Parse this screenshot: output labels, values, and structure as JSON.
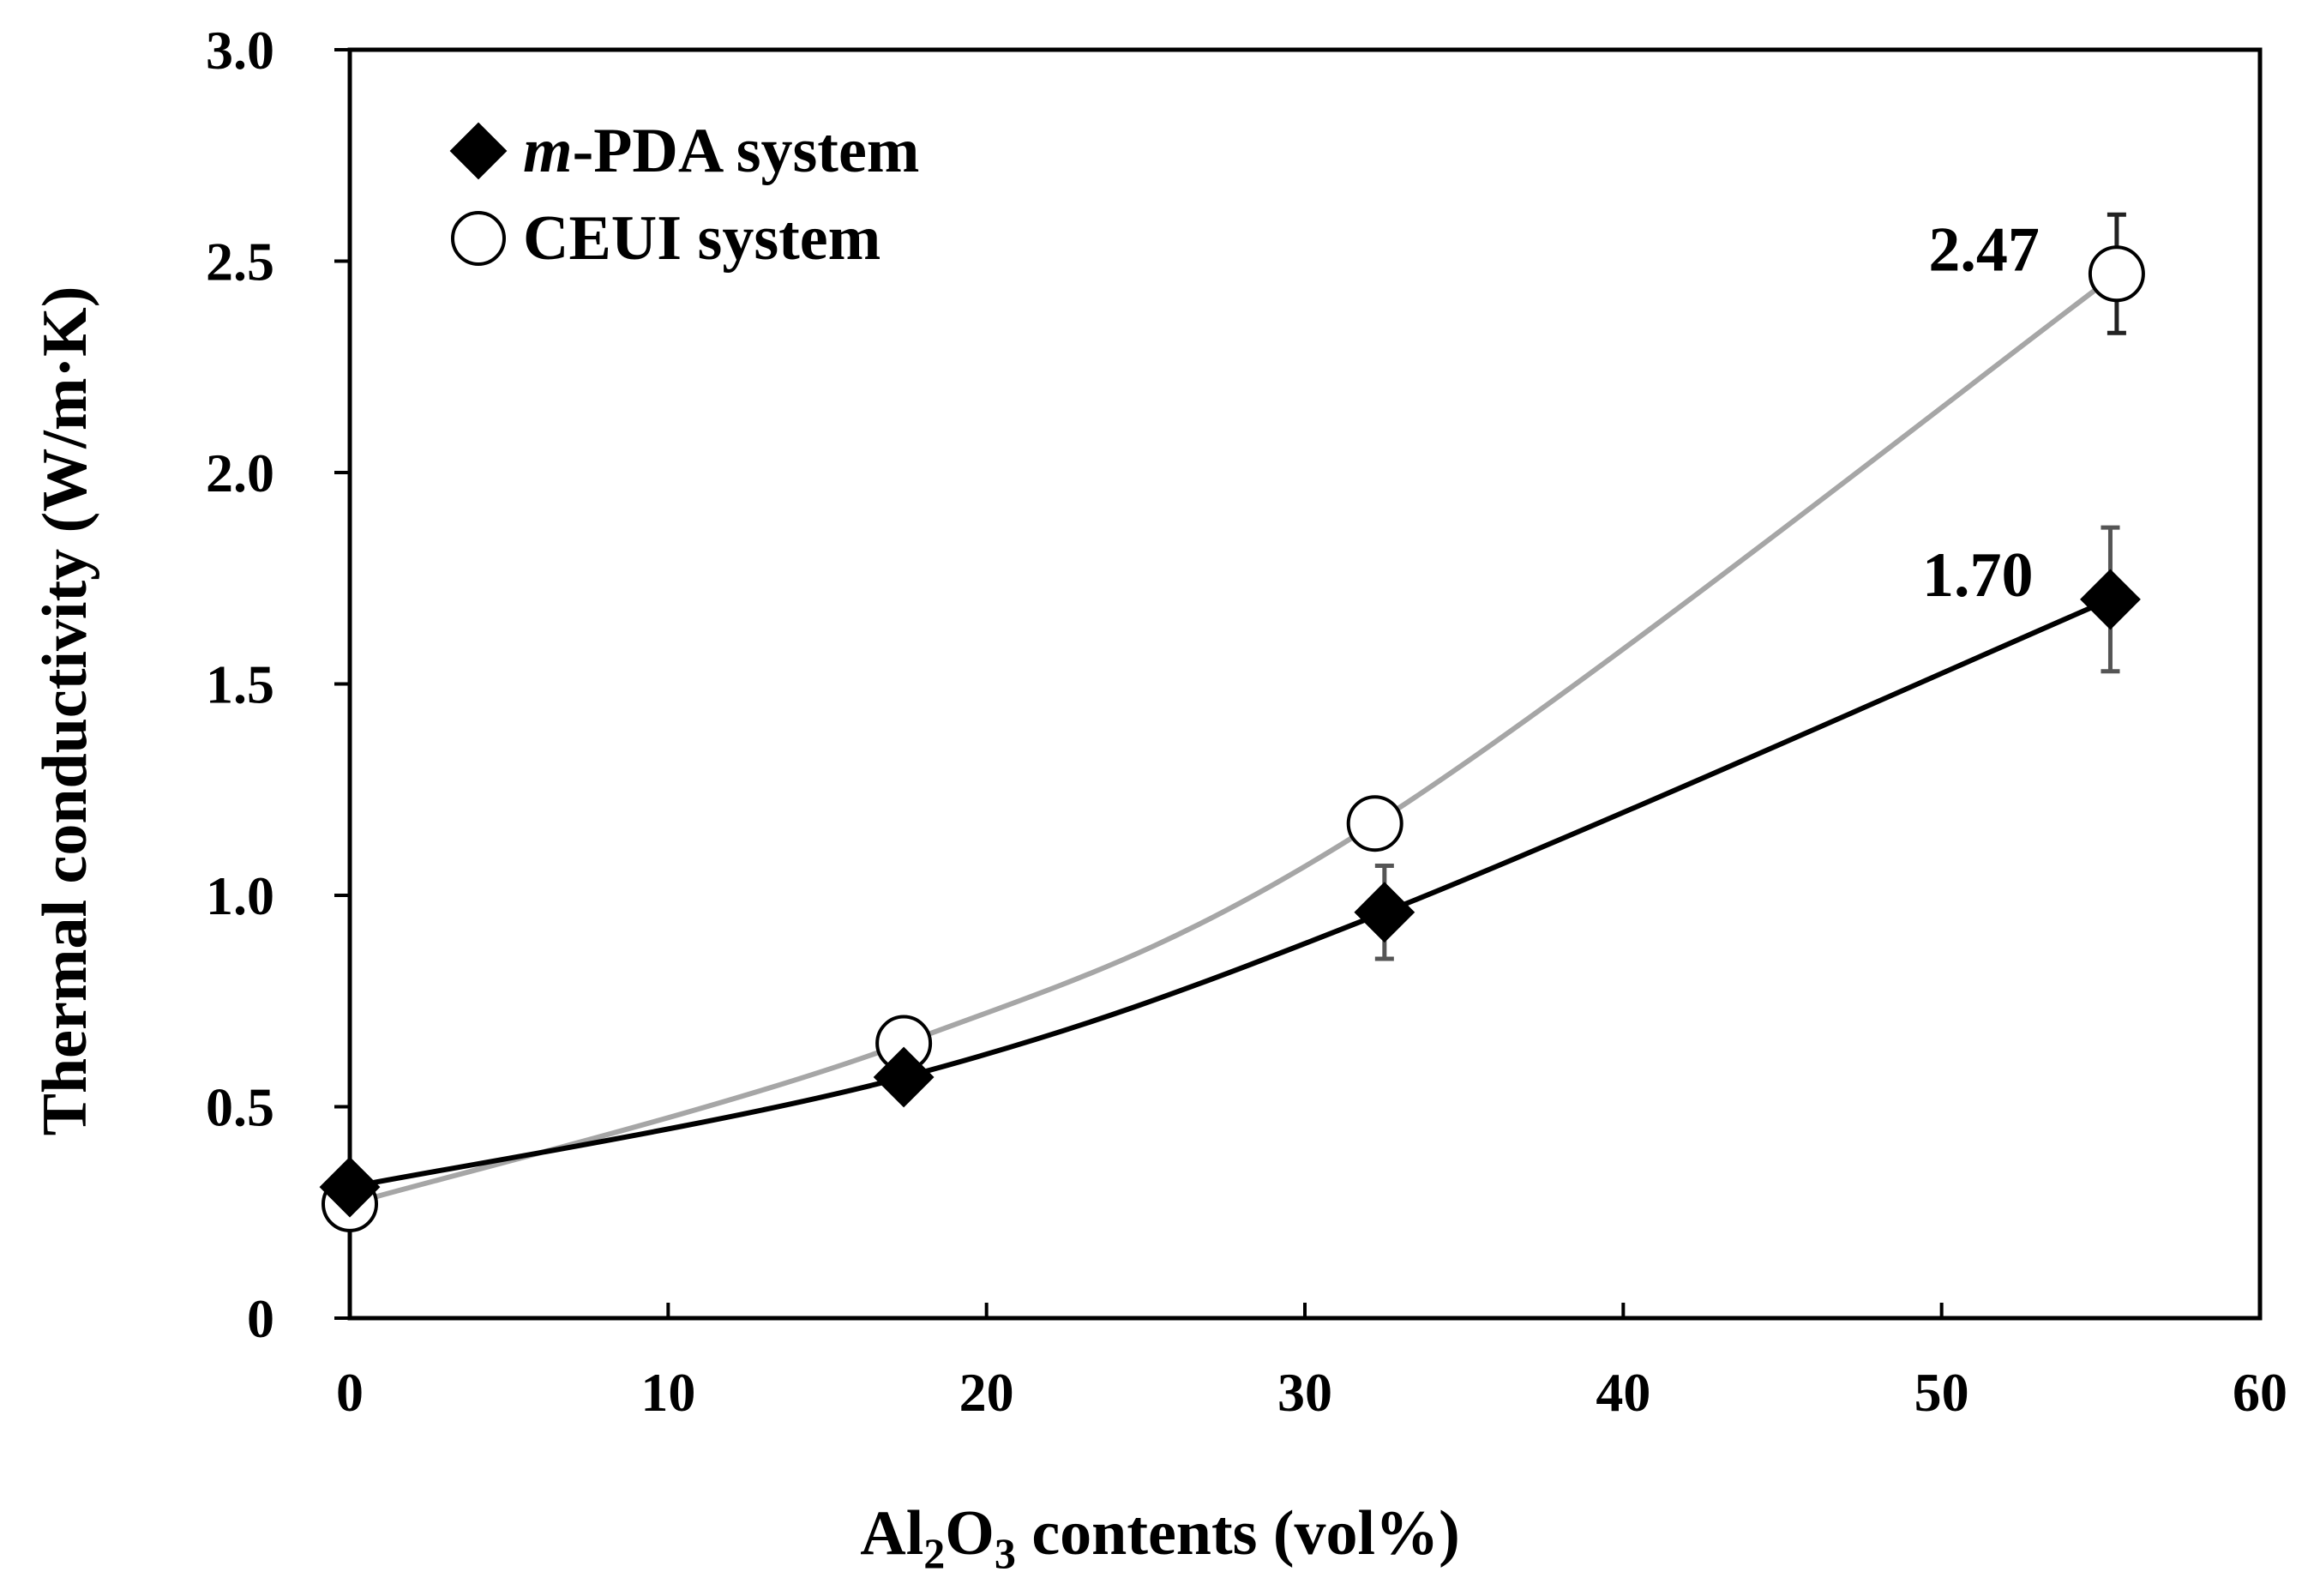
{
  "chart_data": {
    "type": "scatter",
    "title": "",
    "xlabel": {
      "prefix": "Al",
      "sub1": "2",
      "mid": "O",
      "sub2": "3",
      "suffix": " contents (vol%)"
    },
    "ylabel": "Thermal conductivity (W/m·K)",
    "xlim": [
      0,
      60
    ],
    "ylim": [
      0,
      3.0
    ],
    "xticks": [
      0,
      10,
      20,
      30,
      40,
      50,
      60
    ],
    "xtick_labels": [
      "0",
      "10",
      "20",
      "30",
      "40",
      "50",
      "60"
    ],
    "yticks": [
      0,
      0.5,
      1.0,
      1.5,
      2.0,
      2.5,
      3.0
    ],
    "ytick_labels": [
      "0",
      "0.5",
      "1.0",
      "1.5",
      "2.0",
      "2.5",
      "3.0"
    ],
    "grid": false,
    "legend_position": "top-left",
    "series": [
      {
        "name": "m-PDA system",
        "legend_italic": "m",
        "legend_rest": "-PDA system",
        "marker": "diamond",
        "marker_color": "#000000",
        "line_color": "#000000",
        "x": [
          0,
          17.4,
          32.5,
          55.3
        ],
        "y": [
          0.31,
          0.57,
          0.96,
          1.7
        ],
        "error": [
          null,
          null,
          0.11,
          0.17
        ]
      },
      {
        "name": "CEUI system",
        "marker": "circle-open",
        "marker_color": "#000000",
        "line_color": "#a6a6a6",
        "x": [
          0,
          17.4,
          32.2,
          55.5
        ],
        "y": [
          0.27,
          0.65,
          1.17,
          2.47
        ],
        "error": [
          null,
          null,
          null,
          0.14
        ]
      }
    ],
    "annotations": [
      {
        "text": "2.47",
        "series": 1,
        "point": 3
      },
      {
        "text": "1.70",
        "series": 0,
        "point": 3
      }
    ]
  }
}
